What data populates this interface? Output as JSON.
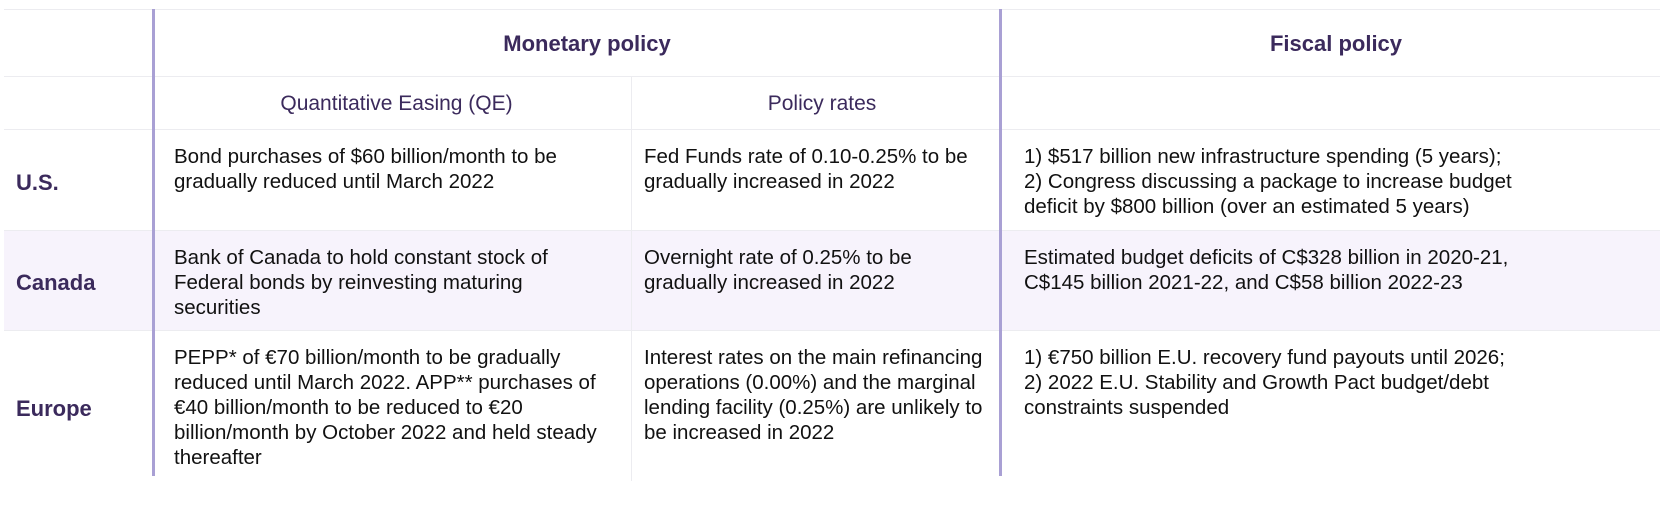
{
  "headers": {
    "monetary": "Monetary policy",
    "fiscal": "Fiscal policy",
    "qe": "Quantitative Easing (QE)",
    "rates": "Policy rates"
  },
  "rows": [
    {
      "region": "U.S.",
      "qe": [
        "Bond purchases of $60 billion/month to be",
        "gradually reduced until March 2022"
      ],
      "rates": [
        "Fed Funds rate of 0.10-0.25% to be",
        "gradually increased in 2022"
      ],
      "fiscal": [
        "1) $517 billion new infrastructure spending (5 years);",
        "2) Congress discussing a package to increase budget",
        "deficit by $800 billion (over an estimated 5 years)"
      ]
    },
    {
      "region": "Canada",
      "qe": [
        "Bank of Canada to hold constant stock of",
        "Federal bonds by reinvesting maturing",
        "securities"
      ],
      "rates": [
        "Overnight rate of 0.25% to be",
        "gradually increased in 2022"
      ],
      "fiscal": [
        "Estimated budget deficits of C$328 billion in 2020-21,",
        "C$145 billion 2021-22, and C$58 billion 2022-23"
      ]
    },
    {
      "region": "Europe",
      "qe": [
        "PEPP* of €70 billion/month to be gradually",
        "reduced until March 2022. APP** purchases of",
        "€40 billion/month to be reduced to €20",
        "billion/month by October 2022 and held steady",
        "thereafter"
      ],
      "rates": [
        "Interest rates on the main refinancing",
        "operations (0.00%) and the marginal",
        "lending facility (0.25%) are unlikely to",
        "be increased in 2022"
      ],
      "fiscal": [
        "1) €750 billion E.U. recovery fund payouts until 2026;",
        "2) 2022 E.U. Stability and Growth Pact budget/debt",
        "constraints suspended"
      ]
    }
  ]
}
